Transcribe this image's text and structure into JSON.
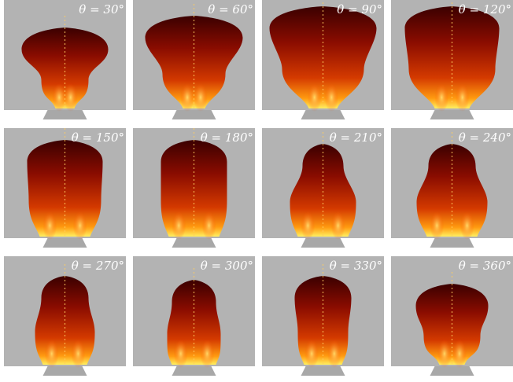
{
  "panels": [
    {
      "label": "θ = 30°"
    },
    {
      "label": "θ = 60°"
    },
    {
      "label": "θ = 90°"
    },
    {
      "label": "θ = 120°"
    },
    {
      "label": "θ = 150°"
    },
    {
      "label": "θ = 180°"
    },
    {
      "label": "θ = 210°"
    },
    {
      "label": "θ = 240°"
    },
    {
      "label": "θ = 270°"
    },
    {
      "label": "θ = 300°"
    },
    {
      "label": "θ = 330°"
    },
    {
      "label": "θ = 360°"
    }
  ]
}
